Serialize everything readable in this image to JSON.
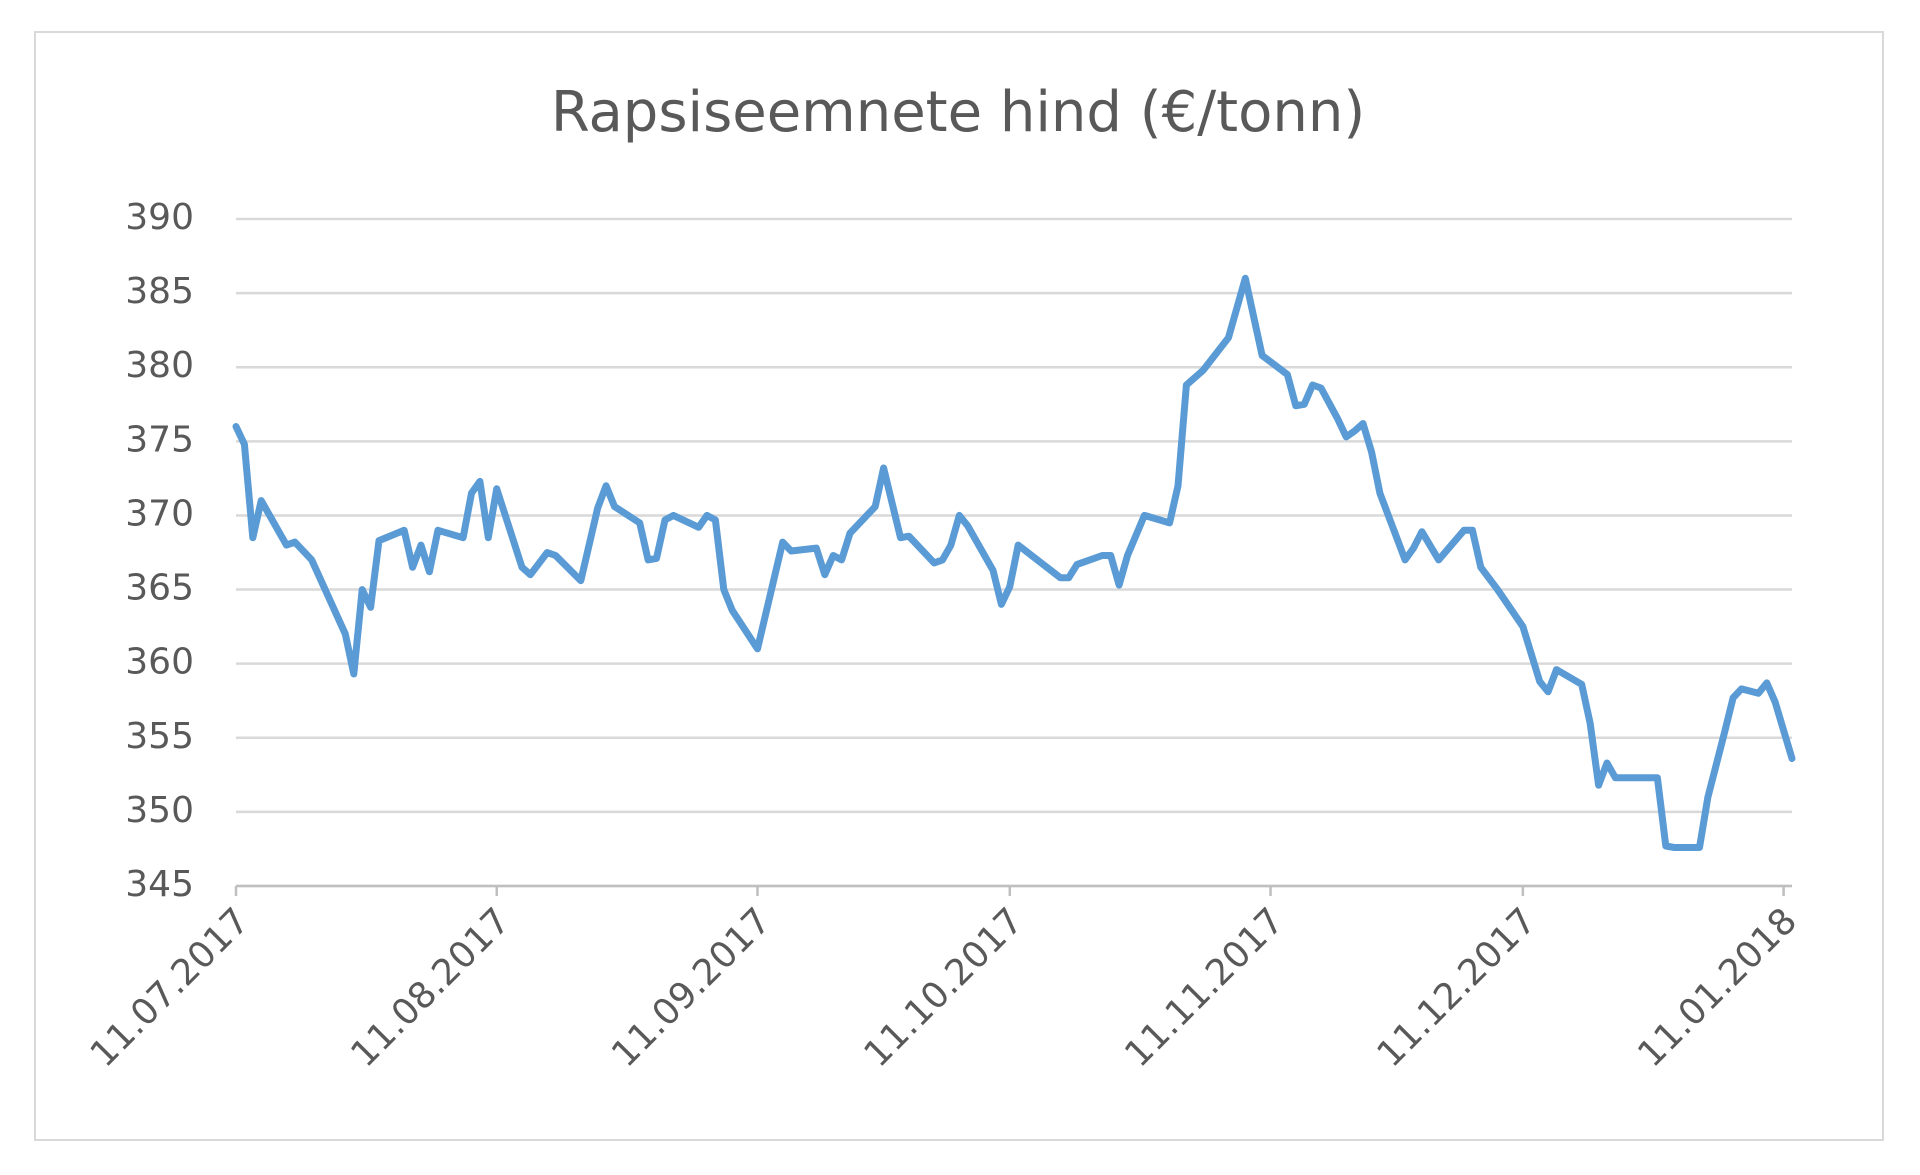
{
  "chart_data": {
    "type": "line",
    "title": "Rapsiseemnete hind (€/tonn)",
    "color": "#5b9bd5",
    "grid": true,
    "x": [
      "11.07.2017",
      "12.07.2017",
      "13.07.2017",
      "14.07.2017",
      "17.07.2017",
      "18.07.2017",
      "20.07.2017",
      "24.07.2017",
      "25.07.2017",
      "26.07.2017",
      "27.07.2017",
      "28.07.2017",
      "31.07.2017",
      "01.08.2017",
      "02.08.2017",
      "03.08.2017",
      "04.08.2017",
      "07.08.2017",
      "08.08.2017",
      "09.08.2017",
      "10.08.2017",
      "11.08.2017",
      "14.08.2017",
      "15.08.2017",
      "17.08.2017",
      "18.08.2017",
      "21.08.2017",
      "23.08.2017",
      "24.08.2017",
      "25.08.2017",
      "28.08.2017",
      "29.08.2017",
      "30.08.2017",
      "31.08.2017",
      "01.09.2017",
      "04.09.2017",
      "05.09.2017",
      "06.09.2017",
      "07.09.2017",
      "08.09.2017",
      "11.09.2017",
      "14.09.2017",
      "15.09.2017",
      "18.09.2017",
      "19.09.2017",
      "20.09.2017",
      "21.09.2017",
      "22.09.2017",
      "25.09.2017",
      "26.09.2017",
      "28.09.2017",
      "29.09.2017",
      "02.10.2017",
      "03.10.2017",
      "04.10.2017",
      "05.10.2017",
      "06.10.2017",
      "09.10.2017",
      "10.10.2017",
      "11.10.2017",
      "12.10.2017",
      "17.10.2017",
      "18.10.2017",
      "19.10.2017",
      "22.10.2017",
      "23.10.2017",
      "24.10.2017",
      "25.10.2017",
      "27.10.2017",
      "30.10.2017",
      "31.10.2017",
      "01.11.2017",
      "03.11.2017",
      "06.11.2017",
      "08.11.2017",
      "10.11.2017",
      "13.11.2017",
      "14.11.2017",
      "15.11.2017",
      "16.11.2017",
      "17.11.2017",
      "19.11.2017",
      "20.11.2017",
      "21.11.2017",
      "22.11.2017",
      "23.11.2017",
      "24.11.2017",
      "27.11.2017",
      "28.11.2017",
      "29.11.2017",
      "01.12.2017",
      "04.12.2017",
      "05.12.2017",
      "06.12.2017",
      "08.12.2017",
      "11.12.2017",
      "13.12.2017",
      "14.12.2017",
      "15.12.2017",
      "18.12.2017",
      "19.12.2017",
      "20.12.2017",
      "21.12.2017",
      "22.12.2017",
      "27.12.2017",
      "28.12.2017",
      "29.12.2017",
      "01.01.2018",
      "02.01.2018",
      "04.01.2018",
      "05.01.2018",
      "06.01.2018",
      "08.01.2018",
      "09.01.2018",
      "10.01.2018",
      "12.01.2018"
    ],
    "values": [
      376.0,
      374.8,
      368.5,
      371.0,
      368.0,
      368.2,
      367.0,
      362.0,
      359.3,
      365.0,
      363.8,
      368.3,
      369.0,
      366.5,
      368.0,
      366.2,
      369.0,
      368.5,
      371.5,
      372.3,
      368.5,
      371.8,
      366.5,
      366.0,
      367.5,
      367.3,
      365.6,
      370.5,
      372.0,
      370.6,
      369.5,
      367.0,
      367.1,
      369.7,
      370.0,
      369.2,
      370.0,
      369.7,
      365.0,
      363.6,
      361.0,
      368.2,
      367.6,
      367.8,
      366.0,
      367.3,
      367.0,
      368.8,
      370.6,
      373.2,
      368.5,
      368.6,
      366.8,
      367.0,
      368.0,
      370.0,
      369.3,
      366.3,
      364.0,
      365.2,
      368.0,
      365.8,
      365.8,
      366.7,
      367.3,
      367.3,
      365.3,
      367.3,
      370.0,
      369.5,
      372.0,
      378.8,
      379.8,
      382.0,
      386.0,
      380.8,
      379.5,
      377.4,
      377.5,
      378.8,
      378.6,
      376.5,
      375.3,
      375.7,
      376.2,
      374.3,
      371.5,
      367.0,
      367.8,
      368.9,
      367.0,
      369.0,
      369.0,
      366.5,
      365.0,
      362.5,
      358.8,
      358.1,
      359.6,
      358.6,
      356.0,
      351.8,
      353.3,
      352.3,
      352.3,
      347.7,
      347.6,
      347.6,
      351.0,
      355.4,
      357.7,
      358.3,
      358.0,
      358.7,
      357.4,
      353.6
    ],
    "xlim": [
      "11.07.2017",
      "12.01.2018"
    ],
    "xticks": [
      "11.07.2017",
      "11.08.2017",
      "11.09.2017",
      "11.10.2017",
      "11.11.2017",
      "11.12.2017",
      "11.01.2018"
    ],
    "ylim": [
      345,
      390
    ],
    "yticks": [
      345,
      350,
      355,
      360,
      365,
      370,
      375,
      380,
      385,
      390
    ]
  }
}
